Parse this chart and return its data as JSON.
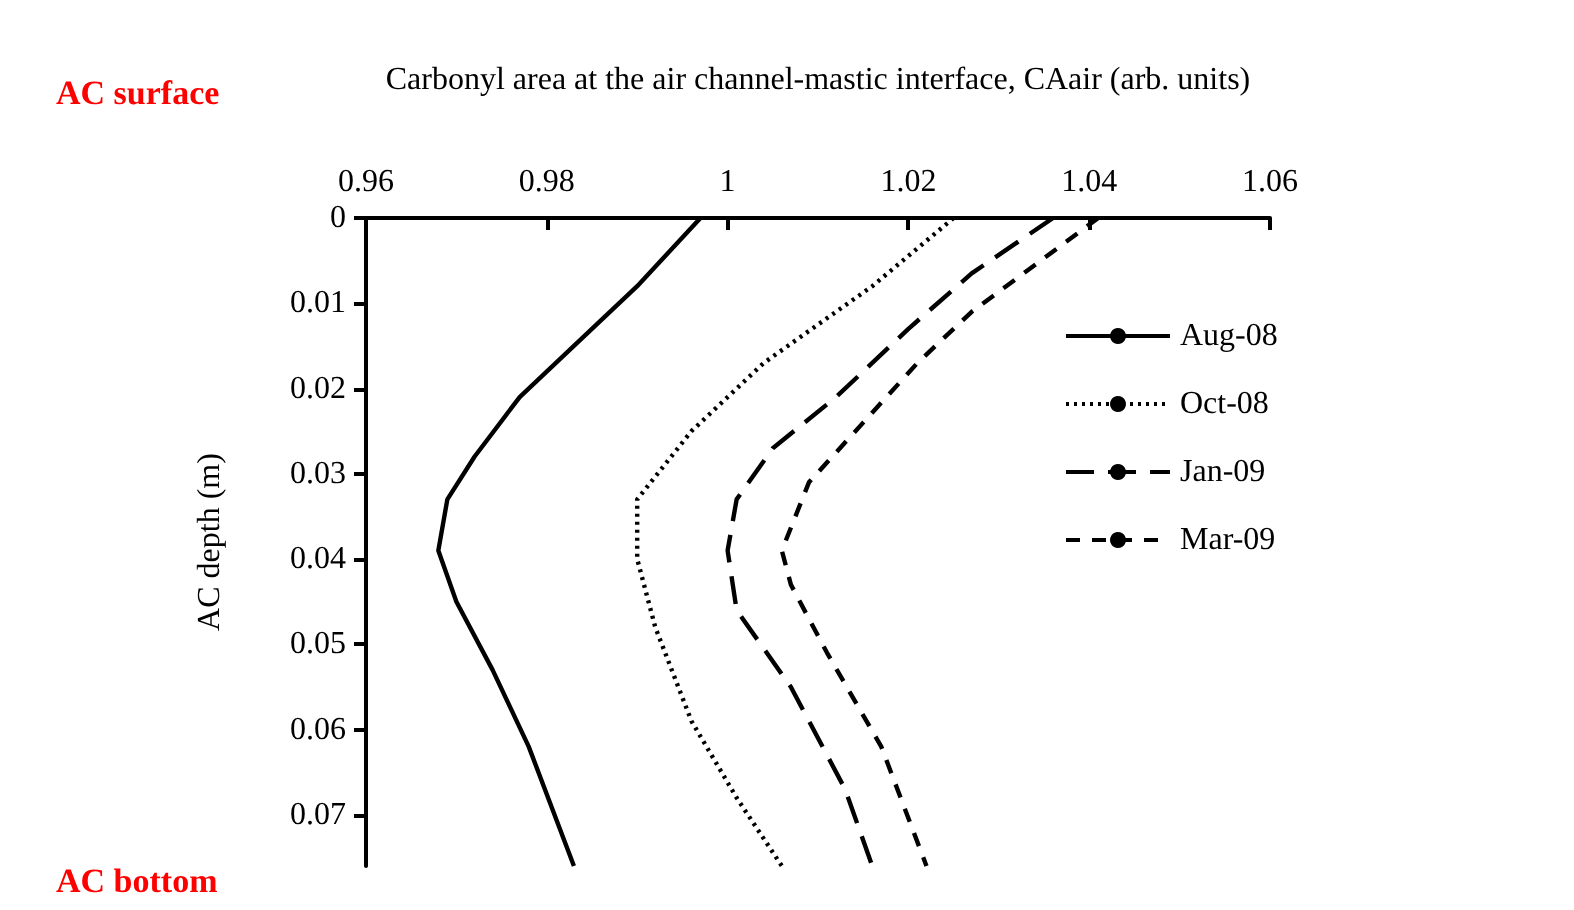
{
  "chart_data": {
    "type": "line",
    "xlabel": "Carbonyl area at the air channel-mastic interface, CAair (arb. units)",
    "ylabel": "AC depth (m)",
    "annotations": [
      "AC surface",
      "AC bottom"
    ],
    "xlim": [
      0.96,
      1.06
    ],
    "xticks": [
      0.96,
      0.98,
      1,
      1.02,
      1.04,
      1.06
    ],
    "ylim": [
      0.076,
      0
    ],
    "yticks": [
      0,
      0.01,
      0.02,
      0.03,
      0.04,
      0.05,
      0.06,
      0.07
    ],
    "legend": "right",
    "grid": false,
    "marker": "none",
    "series": [
      {
        "name": "Aug-08",
        "color": "#000000",
        "line_style": "solid",
        "x": [
          0.997,
          0.99,
          0.983,
          0.977,
          0.972,
          0.969,
          0.968,
          0.97,
          0.974,
          0.978,
          0.983
        ],
        "values": [
          0,
          0.008,
          0.015,
          0.021,
          0.028,
          0.033,
          0.039,
          0.045,
          0.053,
          0.062,
          0.076
        ]
      },
      {
        "name": "Oct-08",
        "color": "#000000",
        "line_style": "dotted",
        "x": [
          1.025,
          1.016,
          1.004,
          0.996,
          0.99,
          0.99,
          0.992,
          0.996,
          1.001,
          1.006
        ],
        "values": [
          0,
          0.008,
          0.017,
          0.025,
          0.033,
          0.04,
          0.048,
          0.059,
          0.068,
          0.076
        ]
      },
      {
        "name": "Jan-09",
        "color": "#000000",
        "line_style": "dashed",
        "x": [
          1.036,
          1.027,
          1.02,
          1.012,
          1.005,
          1.001,
          1.0,
          1.001,
          1.007,
          1.013,
          1.016
        ],
        "values": [
          0,
          0.0065,
          0.013,
          0.021,
          0.027,
          0.033,
          0.039,
          0.046,
          0.055,
          0.067,
          0.076
        ]
      },
      {
        "name": "Mar-09",
        "color": "#000000",
        "line_style": "dashed",
        "x": [
          1.041,
          1.027,
          1.021,
          1.015,
          1.009,
          1.006,
          1.007,
          1.011,
          1.017,
          1.022
        ],
        "values": [
          0,
          0.011,
          0.017,
          0.024,
          0.031,
          0.039,
          0.043,
          0.051,
          0.062,
          0.076
        ]
      }
    ]
  }
}
